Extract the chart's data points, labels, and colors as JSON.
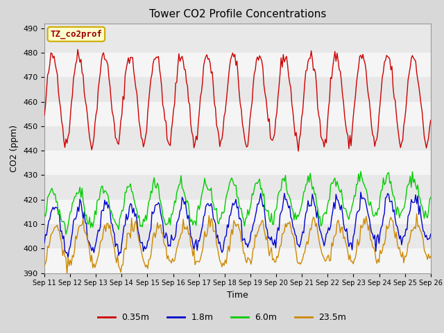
{
  "title": "Tower CO2 Profile Concentrations",
  "xlabel": "Time",
  "ylabel": "CO2 (ppm)",
  "ylim": [
    390,
    492
  ],
  "yticks": [
    390,
    400,
    410,
    420,
    430,
    440,
    450,
    460,
    470,
    480,
    490
  ],
  "label_box_text": "TZ_co2prof",
  "label_box_color": "#ffffcc",
  "label_box_border": "#ccaa00",
  "colors": {
    "0.35m": "#cc0000",
    "1.8m": "#0000cc",
    "6.0m": "#00cc00",
    "23.5m": "#cc8800"
  },
  "legend_labels": [
    "0.35m",
    "1.8m",
    "6.0m",
    "23.5m"
  ],
  "background_color": "#d8d8d8",
  "plot_bg_color": "#e8e8e8",
  "n_points": 360,
  "x_start_day": 11,
  "x_end_day": 26,
  "xtick_days": [
    11,
    12,
    13,
    14,
    15,
    16,
    17,
    18,
    19,
    20,
    21,
    22,
    23,
    24,
    25,
    26
  ],
  "figsize": [
    6.4,
    4.8
  ],
  "dpi": 100
}
